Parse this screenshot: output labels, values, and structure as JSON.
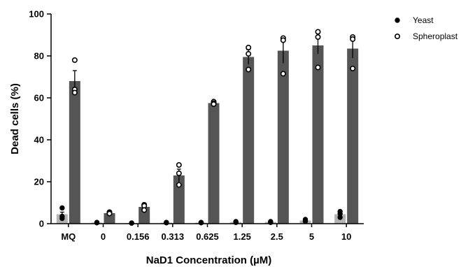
{
  "chart_data": {
    "type": "bar",
    "title": "",
    "xlabel": "NaD1 Concentration (µM)",
    "ylabel": "Dead cells (%)",
    "ylim": [
      0,
      100
    ],
    "yticks": [
      0,
      20,
      40,
      60,
      80,
      100
    ],
    "categories": [
      "MQ",
      "0",
      "0.156",
      "0.313",
      "0.625",
      "1.25",
      "2.5",
      "5",
      "10"
    ],
    "legend_position": "top-right",
    "colors": {
      "Yeast": "#b3b3b3",
      "Spheroplast": "#555555"
    },
    "series": [
      {
        "name": "Yeast",
        "marker": "filled-circle",
        "values": [
          4.5,
          0.5,
          0.3,
          0.5,
          0.5,
          0.8,
          0.8,
          1.5,
          4.5
        ],
        "errors": [
          1.0,
          0.2,
          0.1,
          0.2,
          0.2,
          0.3,
          0.3,
          0.4,
          1.0
        ],
        "points": [
          [
            7.5,
            3.5,
            2.5
          ],
          [
            0.5,
            0.4,
            0.6
          ],
          [
            0.3,
            0.3,
            0.3
          ],
          [
            0.6,
            0.5,
            0.4
          ],
          [
            0.4,
            0.6,
            0.5
          ],
          [
            0.6,
            1.0,
            0.7
          ],
          [
            1.0,
            0.6,
            0.8
          ],
          [
            2.0,
            1.4,
            1.1
          ],
          [
            5.8,
            4.8,
            3.0
          ]
        ]
      },
      {
        "name": "Spheroplast",
        "marker": "open-circle",
        "values": [
          68,
          5,
          8,
          23,
          57.5,
          79.5,
          82.5,
          85,
          83.5
        ],
        "errors": [
          5,
          0.5,
          1.5,
          3,
          0.5,
          3.5,
          6,
          4,
          4.5
        ],
        "points": [
          [
            78,
            64,
            62.5
          ],
          [
            5.5,
            5,
            4.8
          ],
          [
            9,
            8.5,
            6.5
          ],
          [
            28,
            24,
            18.5
          ],
          [
            58.2,
            57.5,
            57
          ],
          [
            84,
            81,
            73.5
          ],
          [
            88.5,
            87.5,
            71.5
          ],
          [
            91.5,
            89,
            74.5
          ],
          [
            89,
            88,
            74
          ]
        ]
      }
    ]
  }
}
